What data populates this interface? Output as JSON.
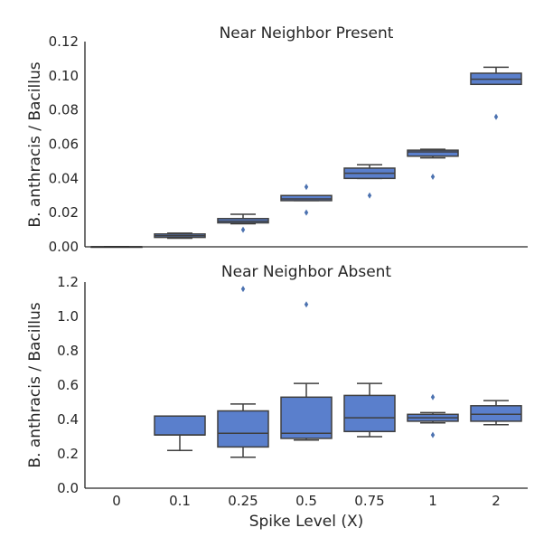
{
  "colors": {
    "box": "#5a7fcc",
    "line": "#3f3f3f",
    "flier": "#4c72b0"
  },
  "chart_data": [
    {
      "type": "box",
      "title": "Near Neighbor Present",
      "ylabel": "B. anthracis / Bacillus",
      "xlabel": "",
      "ylim": [
        0,
        0.12
      ],
      "yticks": [
        0,
        0.02,
        0.04,
        0.06,
        0.08,
        0.1,
        0.12
      ],
      "ytick_labels": [
        "0.00",
        "0.02",
        "0.04",
        "0.06",
        "0.08",
        "0.10",
        "0.12"
      ],
      "categories": [
        "0",
        "0.1",
        "0.25",
        "0.5",
        "0.75",
        "1",
        "2"
      ],
      "boxes": [
        {
          "whislo": 0.0,
          "q1": 0.0,
          "med": 0.0,
          "q3": 0.0,
          "whishi": 0.0,
          "fliers": []
        },
        {
          "whislo": 0.005,
          "q1": 0.0055,
          "med": 0.0065,
          "q3": 0.0075,
          "whishi": 0.008,
          "fliers": []
        },
        {
          "whislo": 0.0135,
          "q1": 0.014,
          "med": 0.015,
          "q3": 0.0165,
          "whishi": 0.019,
          "fliers": [
            0.01
          ]
        },
        {
          "whislo": 0.027,
          "q1": 0.027,
          "med": 0.028,
          "q3": 0.03,
          "whishi": 0.03,
          "fliers": [
            0.035,
            0.02
          ]
        },
        {
          "whislo": 0.04,
          "q1": 0.04,
          "med": 0.043,
          "q3": 0.046,
          "whishi": 0.048,
          "fliers": [
            0.03
          ]
        },
        {
          "whislo": 0.052,
          "q1": 0.053,
          "med": 0.0555,
          "q3": 0.0565,
          "whishi": 0.057,
          "fliers": [
            0.041
          ]
        },
        {
          "whislo": 0.095,
          "q1": 0.095,
          "med": 0.098,
          "q3": 0.1015,
          "whishi": 0.105,
          "fliers": [
            0.076
          ]
        }
      ]
    },
    {
      "type": "box",
      "title": "Near Neighbor Absent",
      "ylabel": "B. anthracis / Bacillus",
      "xlabel": "Spike Level (X)",
      "ylim": [
        0,
        1.2
      ],
      "yticks": [
        0,
        0.2,
        0.4,
        0.6,
        0.8,
        1.0,
        1.2
      ],
      "ytick_labels": [
        "0.0",
        "0.2",
        "0.4",
        "0.6",
        "0.8",
        "1.0",
        "1.2"
      ],
      "categories": [
        "0",
        "0.1",
        "0.25",
        "0.5",
        "0.75",
        "1",
        "2"
      ],
      "boxes": [
        null,
        {
          "whislo": 0.22,
          "q1": 0.31,
          "med": 0.31,
          "q3": 0.42,
          "whishi": 0.42,
          "fliers": []
        },
        {
          "whislo": 0.18,
          "q1": 0.24,
          "med": 0.32,
          "q3": 0.45,
          "whishi": 0.49,
          "fliers": [
            1.16
          ]
        },
        {
          "whislo": 0.28,
          "q1": 0.29,
          "med": 0.32,
          "q3": 0.53,
          "whishi": 0.61,
          "fliers": [
            1.07
          ]
        },
        {
          "whislo": 0.3,
          "q1": 0.33,
          "med": 0.41,
          "q3": 0.54,
          "whishi": 0.61,
          "fliers": []
        },
        {
          "whislo": 0.38,
          "q1": 0.39,
          "med": 0.41,
          "q3": 0.43,
          "whishi": 0.44,
          "fliers": [
            0.53,
            0.31
          ]
        },
        {
          "whislo": 0.37,
          "q1": 0.39,
          "med": 0.43,
          "q3": 0.48,
          "whishi": 0.51,
          "fliers": []
        }
      ]
    }
  ]
}
